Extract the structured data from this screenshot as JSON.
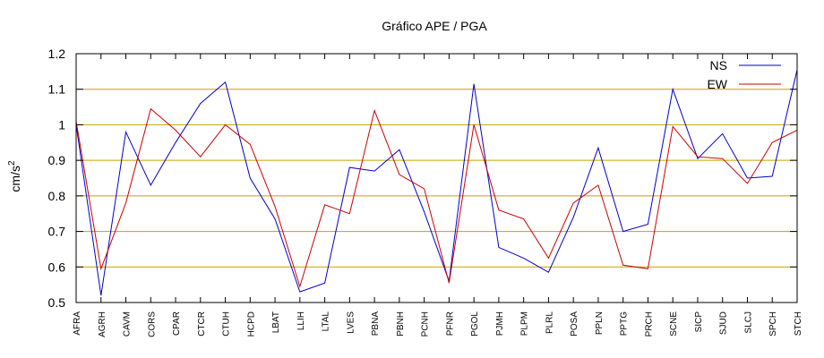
{
  "chart_data": {
    "type": "line",
    "title": "Gráfico  APE / PGA",
    "xlabel": "",
    "ylabel": "cm/s",
    "ylabel_superscript": "2",
    "ylim": [
      0.5,
      1.2
    ],
    "yticks": [
      0.5,
      0.6,
      0.7,
      0.8,
      0.9,
      1,
      1.1,
      1.2
    ],
    "ytick_labels": [
      "0.5",
      "0.6",
      "0.7",
      "0.8",
      "0.9",
      "1",
      "1.1",
      "1.2"
    ],
    "grid": "horizontal",
    "grid_color": "#c8a000",
    "legend_position": "top-right",
    "categories": [
      "AFRA",
      "AGRH",
      "CAVM",
      "CORS",
      "CPAR",
      "CTCR",
      "CTUH",
      "HCPD",
      "LBAT",
      "LLIH",
      "LTAL",
      "LVES",
      "PBNA",
      "PBNH",
      "PCNH",
      "PFNR",
      "PGOL",
      "PJMH",
      "PLPM",
      "PLRL",
      "POSA",
      "PPLN",
      "PPTG",
      "PRCH",
      "SCNE",
      "SICP",
      "SJUD",
      "SLCJ",
      "SPCH",
      "STCH"
    ],
    "series": [
      {
        "name": "NS",
        "color": "#0000cc",
        "values": [
          1.0,
          0.52,
          0.98,
          0.83,
          0.95,
          1.06,
          1.12,
          0.85,
          0.735,
          0.53,
          0.555,
          0.88,
          0.87,
          0.93,
          0.755,
          0.56,
          1.115,
          0.655,
          0.625,
          0.585,
          0.74,
          0.935,
          0.7,
          0.72,
          1.1,
          0.905,
          0.975,
          0.85,
          0.855,
          1.155
        ]
      },
      {
        "name": "EW",
        "color": "#cc0000",
        "values": [
          1.01,
          0.595,
          0.78,
          1.045,
          0.985,
          0.91,
          1.0,
          0.945,
          0.77,
          0.545,
          0.775,
          0.75,
          1.04,
          0.86,
          0.82,
          0.555,
          1.0,
          0.76,
          0.735,
          0.625,
          0.78,
          0.83,
          0.605,
          0.595,
          0.995,
          0.91,
          0.905,
          0.835,
          0.95,
          0.985
        ]
      }
    ]
  }
}
